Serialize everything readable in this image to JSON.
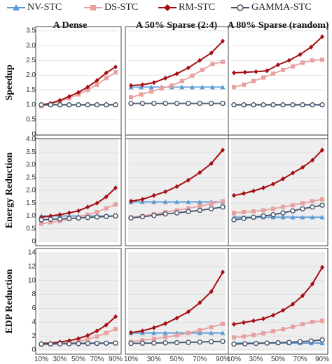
{
  "legend": {
    "nv": "NV-STC",
    "ds": "DS-STC",
    "rm": "RM-STC",
    "gamma": "GAMMA-STC"
  },
  "colors": {
    "nv": "#5b9bd5",
    "ds": "#e8a0a0",
    "rm": "#a50e12",
    "gamma": "#44546a",
    "grid": "#d9d9d9",
    "shaded_bg": "#eeeeee"
  },
  "chart_data": {
    "type": "line",
    "column_titles": [
      "A Dense",
      "A 50% Sparse (2:4)",
      "A 80% Sparse (random)"
    ],
    "row_labels": [
      "Speedup",
      "Energy Reduction",
      "EDP Reduction"
    ],
    "x_tick_labels": [
      "10%",
      "30%",
      "50%",
      "70%",
      "90%"
    ],
    "x": [
      "10%",
      "15%",
      "20%",
      "25%",
      "30%",
      "35%",
      "40%",
      "45%",
      "50%",
      "55%",
      "60%",
      "65%",
      "70%",
      "75%",
      "80%",
      "85%",
      "90%"
    ],
    "rows": [
      {
        "ylabel": "Speedup",
        "ylim": [
          0,
          3.5
        ],
        "yticks": [
          "0",
          "0.5",
          "1.0",
          "1.5",
          "2.0",
          "2.5",
          "3.0",
          "3.5"
        ],
        "yticks_values": [
          0,
          0.5,
          1.0,
          1.5,
          2.0,
          2.5,
          3.0,
          3.5
        ],
        "panels": [
          {
            "column": "A Dense",
            "series": [
              {
                "name": "NV-STC",
                "values": [
                  1.0,
                  1.0,
                  1.0,
                  1.0,
                  1.0,
                  1.0,
                  1.0,
                  1.0,
                  1.0
                ]
              },
              {
                "name": "DS-STC",
                "values": [
                  0.95,
                  1.03,
                  1.12,
                  1.22,
                  1.35,
                  1.5,
                  1.68,
                  1.9,
                  2.1
                ]
              },
              {
                "name": "RM-STC",
                "values": [
                  1.0,
                  1.05,
                  1.15,
                  1.28,
                  1.42,
                  1.6,
                  1.82,
                  2.08,
                  2.28
                ]
              },
              {
                "name": "GAMMA-STC",
                "values": [
                  1.0,
                  1.0,
                  1.0,
                  1.0,
                  1.0,
                  1.0,
                  1.0,
                  1.0,
                  1.0
                ]
              }
            ]
          },
          {
            "column": "A 50% Sparse (2:4)",
            "series": [
              {
                "name": "NV-STC",
                "values": [
                  1.6,
                  1.6,
                  1.6,
                  1.6,
                  1.6,
                  1.6,
                  1.6,
                  1.6,
                  1.6,
                  1.6
                ]
              },
              {
                "name": "DS-STC",
                "values": [
                  1.25,
                  1.35,
                  1.45,
                  1.55,
                  1.65,
                  1.8,
                  1.98,
                  2.18,
                  2.38,
                  2.45
                ]
              },
              {
                "name": "RM-STC",
                "values": [
                  1.65,
                  1.68,
                  1.75,
                  1.9,
                  2.05,
                  2.25,
                  2.5,
                  2.75,
                  3.15
                ]
              },
              {
                "name": "GAMMA-STC",
                "values": [
                  1.05,
                  1.05,
                  1.05,
                  1.05,
                  1.05,
                  1.05,
                  1.05,
                  1.05,
                  1.05
                ]
              }
            ]
          },
          {
            "column": "A 80% Sparse (random)",
            "series": [
              {
                "name": "NV-STC",
                "values": [
                  1.0,
                  1.0,
                  1.0,
                  1.0,
                  1.0,
                  1.0,
                  1.0,
                  1.0,
                  1.0,
                  1.0
                ]
              },
              {
                "name": "DS-STC",
                "values": [
                  1.6,
                  1.68,
                  1.8,
                  1.92,
                  2.05,
                  2.18,
                  2.3,
                  2.42,
                  2.5,
                  2.52
                ]
              },
              {
                "name": "RM-STC",
                "values": [
                  2.08,
                  2.1,
                  2.12,
                  2.15,
                  2.35,
                  2.5,
                  2.7,
                  2.95,
                  3.3
                ]
              },
              {
                "name": "GAMMA-STC",
                "values": [
                  1.0,
                  1.0,
                  1.0,
                  1.0,
                  1.0,
                  1.0,
                  1.0,
                  1.0,
                  1.0,
                  1.0
                ]
              }
            ]
          }
        ]
      },
      {
        "ylabel": "Energy Reduction",
        "ylim": [
          0,
          4.0
        ],
        "yticks": [
          "0",
          "0.5",
          "1.0",
          "1.5",
          "2.0",
          "2.5",
          "3.0",
          "3.5",
          "4.0"
        ],
        "yticks_values": [
          0,
          0.5,
          1.0,
          1.5,
          2.0,
          2.5,
          3.0,
          3.5,
          4.0
        ],
        "panels": [
          {
            "column": "A Dense",
            "series": [
              {
                "name": "NV-STC",
                "values": [
                  1.0,
                  1.0,
                  1.0,
                  1.0,
                  1.0,
                  1.0,
                  1.0,
                  1.0,
                  1.0
                ]
              },
              {
                "name": "DS-STC",
                "values": [
                  0.7,
                  0.75,
                  0.8,
                  0.88,
                  0.95,
                  1.05,
                  1.15,
                  1.3,
                  1.45
                ]
              },
              {
                "name": "RM-STC",
                "values": [
                  0.95,
                  1.0,
                  1.05,
                  1.12,
                  1.2,
                  1.35,
                  1.5,
                  1.75,
                  2.1
                ]
              },
              {
                "name": "GAMMA-STC",
                "values": [
                  0.85,
                  0.87,
                  0.88,
                  0.9,
                  0.92,
                  0.94,
                  0.96,
                  0.98,
                  1.0
                ]
              }
            ]
          },
          {
            "column": "A 50% Sparse (2:4)",
            "series": [
              {
                "name": "NV-STC",
                "values": [
                  1.55,
                  1.55,
                  1.55,
                  1.55,
                  1.55,
                  1.55,
                  1.55,
                  1.55,
                  1.55
                ]
              },
              {
                "name": "DS-STC",
                "values": [
                  0.95,
                  1.0,
                  1.07,
                  1.15,
                  1.22,
                  1.3,
                  1.38,
                  1.48,
                  1.58
                ]
              },
              {
                "name": "RM-STC",
                "values": [
                  1.58,
                  1.65,
                  1.8,
                  1.95,
                  2.15,
                  2.4,
                  2.7,
                  3.05,
                  3.58
                ]
              },
              {
                "name": "GAMMA-STC",
                "values": [
                  0.92,
                  0.97,
                  1.02,
                  1.08,
                  1.12,
                  1.17,
                  1.22,
                  1.28,
                  1.35
                ]
              }
            ]
          },
          {
            "column": "A 80% Sparse (random)",
            "series": [
              {
                "name": "NV-STC",
                "values": [
                  0.95,
                  0.95,
                  0.95,
                  0.95,
                  0.95,
                  0.95,
                  0.95,
                  0.95,
                  0.95,
                  0.95
                ]
              },
              {
                "name": "DS-STC",
                "values": [
                  1.12,
                  1.15,
                  1.18,
                  1.22,
                  1.28,
                  1.35,
                  1.42,
                  1.5,
                  1.58,
                  1.65
                ]
              },
              {
                "name": "RM-STC",
                "values": [
                  1.8,
                  1.88,
                  1.98,
                  2.1,
                  2.25,
                  2.45,
                  2.68,
                  2.9,
                  3.18,
                  3.58
                ]
              },
              {
                "name": "GAMMA-STC",
                "values": [
                  0.85,
                  0.9,
                  0.95,
                  1.0,
                  1.05,
                  1.12,
                  1.2,
                  1.28,
                  1.35,
                  1.42
                ]
              }
            ]
          }
        ]
      },
      {
        "ylabel": "EDP Reduction",
        "ylim": [
          0,
          14
        ],
        "yticks": [
          "0",
          "2",
          "4",
          "6",
          "8",
          "10",
          "12",
          "14"
        ],
        "yticks_values": [
          0,
          2,
          4,
          6,
          8,
          10,
          12,
          14
        ],
        "panels": [
          {
            "column": "A Dense",
            "series": [
              {
                "name": "NV-STC",
                "values": [
                  1.0,
                  1.0,
                  1.0,
                  1.0,
                  1.0,
                  1.0,
                  1.0,
                  1.0,
                  1.0
                ]
              },
              {
                "name": "DS-STC",
                "values": [
                  0.75,
                  0.8,
                  0.9,
                  1.05,
                  1.25,
                  1.55,
                  1.95,
                  2.45,
                  3.0
                ]
              },
              {
                "name": "RM-STC",
                "values": [
                  0.9,
                  1.0,
                  1.15,
                  1.35,
                  1.65,
                  2.1,
                  2.75,
                  3.6,
                  4.8
                ]
              },
              {
                "name": "GAMMA-STC",
                "values": [
                  0.85,
                  0.87,
                  0.88,
                  0.9,
                  0.92,
                  0.94,
                  0.96,
                  0.98,
                  1.0
                ]
              }
            ]
          },
          {
            "column": "A 50% Sparse (2:4)",
            "series": [
              {
                "name": "NV-STC",
                "values": [
                  2.45,
                  2.45,
                  2.45,
                  2.45,
                  2.45,
                  2.45,
                  2.45,
                  2.45,
                  2.45
                ]
              },
              {
                "name": "DS-STC",
                "values": [
                  1.2,
                  1.4,
                  1.6,
                  1.85,
                  2.1,
                  2.45,
                  2.85,
                  3.3,
                  3.75
                ]
              },
              {
                "name": "RM-STC",
                "values": [
                  2.5,
                  2.75,
                  3.2,
                  3.8,
                  4.6,
                  5.5,
                  6.8,
                  8.4,
                  11.2
                ]
              },
              {
                "name": "GAMMA-STC",
                "values": [
                  0.95,
                  0.98,
                  1.0,
                  1.03,
                  1.06,
                  1.1,
                  1.14,
                  1.2,
                  1.25
                ]
              }
            ]
          },
          {
            "column": "A 80% Sparse (random)",
            "series": [
              {
                "name": "NV-STC",
                "values": [
                  1.0,
                  1.0,
                  1.0,
                  1.0,
                  1.0,
                  1.0,
                  1.0,
                  1.0,
                  1.0
                ]
              },
              {
                "name": "DS-STC",
                "values": [
                  1.8,
                  1.95,
                  2.15,
                  2.4,
                  2.7,
                  3.0,
                  3.35,
                  3.7,
                  4.05,
                  4.2
                ]
              },
              {
                "name": "RM-STC",
                "values": [
                  3.7,
                  3.95,
                  4.2,
                  4.5,
                  5.0,
                  5.7,
                  6.6,
                  7.8,
                  9.5,
                  11.9
                ]
              },
              {
                "name": "GAMMA-STC",
                "values": [
                  0.85,
                  0.9,
                  0.95,
                  1.0,
                  1.05,
                  1.1,
                  1.2,
                  1.3,
                  1.45
                ]
              }
            ]
          }
        ]
      }
    ]
  }
}
